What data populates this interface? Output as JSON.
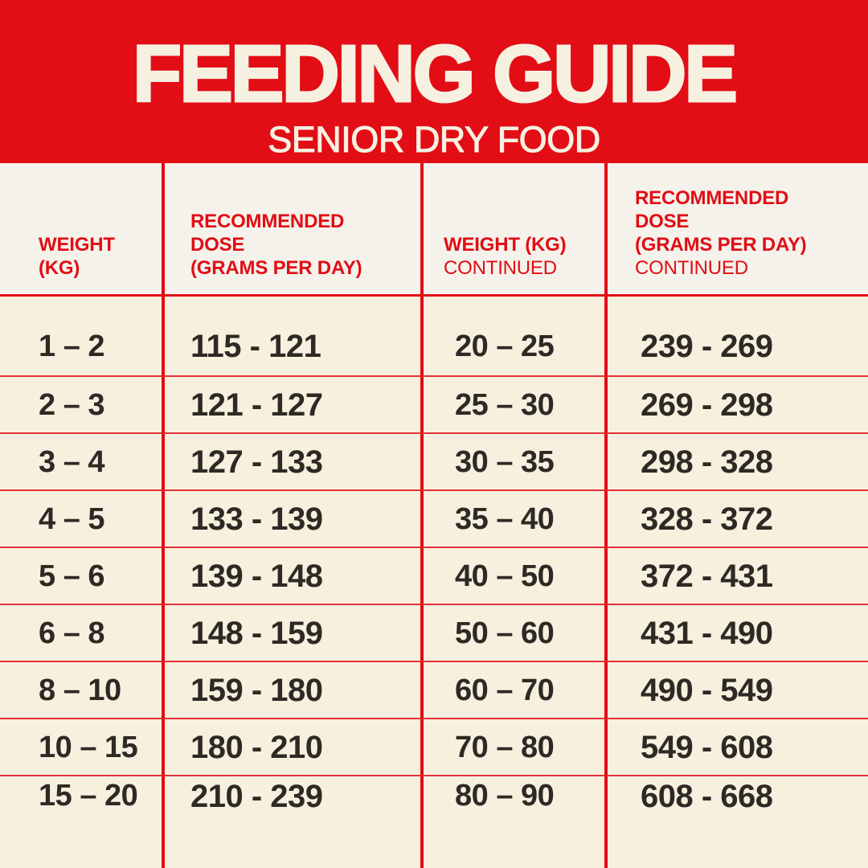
{
  "theme": {
    "brand-red": "#E20D15",
    "banner-text": "#F6F0E1",
    "header-band-bg": "#F4F2EB",
    "rows-bg": "#F8F0DE",
    "data-text": "#2D2A25",
    "row-divider": "#E43137"
  },
  "banner": {
    "title": "FEEDING GUIDE",
    "subtitle": "SENIOR DRY FOOD"
  },
  "table": {
    "headers": {
      "weight": "WEIGHT\n(KG)",
      "dose": "RECOMMENDED\nDOSE\n(GRAMS PER DAY)",
      "weight_continued_title": "WEIGHT (KG)",
      "weight_continued_label": "CONTINUED",
      "dose_continued_title": "RECOMMENDED\nDOSE\n(GRAMS PER DAY)",
      "dose_continued_label": "CONTINUED"
    },
    "rows": [
      {
        "weight": "1 – 2",
        "dose": "115 - 121",
        "weight2": "20 – 25",
        "dose2": "239 - 269"
      },
      {
        "weight": "2 – 3",
        "dose": "121 - 127",
        "weight2": "25 – 30",
        "dose2": "269 - 298"
      },
      {
        "weight": "3 – 4",
        "dose": "127 - 133",
        "weight2": "30 – 35",
        "dose2": "298 - 328"
      },
      {
        "weight": "4 – 5",
        "dose": "133 - 139",
        "weight2": "35 – 40",
        "dose2": "328 - 372"
      },
      {
        "weight": "5 – 6",
        "dose": "139 - 148",
        "weight2": "40 – 50",
        "dose2": "372 - 431"
      },
      {
        "weight": "6 – 8",
        "dose": "148 - 159",
        "weight2": "50 – 60",
        "dose2": "431 - 490"
      },
      {
        "weight": "8 – 10",
        "dose": "159 - 180",
        "weight2": "60 – 70",
        "dose2": "490 - 549"
      },
      {
        "weight": "10 – 15",
        "dose": "180 - 210",
        "weight2": "70 – 80",
        "dose2": "549 - 608"
      },
      {
        "weight": "15 – 20",
        "dose": "210 - 239",
        "weight2": "80 – 90",
        "dose2": "608 - 668"
      }
    ]
  }
}
